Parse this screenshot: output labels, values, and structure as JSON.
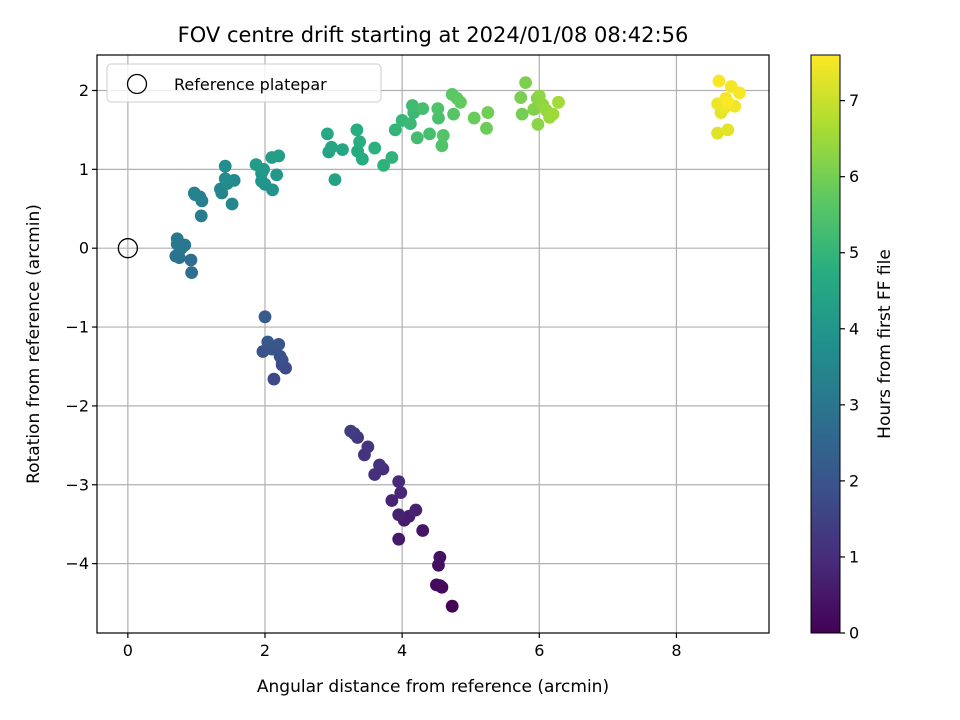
{
  "chart_data": {
    "type": "scatter",
    "title": "FOV centre drift starting at 2024/01/08 08:42:56",
    "xlabel": "Angular distance from reference (arcmin)",
    "ylabel": "Rotation from reference (arcmin)",
    "xlim": [
      -0.45,
      9.35
    ],
    "ylim": [
      -4.88,
      2.45
    ],
    "xticks": [
      0,
      2,
      4,
      6,
      8
    ],
    "xtick_labels": [
      "0",
      "2",
      "4",
      "6",
      "8"
    ],
    "yticks": [
      -4,
      -3,
      -2,
      -1,
      0,
      1,
      2
    ],
    "ytick_labels": [
      "−4",
      "−3",
      "−2",
      "−1",
      "0",
      "1",
      "2"
    ],
    "grid": true,
    "legend": {
      "placement": "upper-left",
      "entries": [
        {
          "label": "Reference platepar",
          "marker": "open-circle"
        }
      ]
    },
    "reference_point": {
      "x": 0,
      "y": 0
    },
    "colorbar": {
      "label": "Hours from first FF file",
      "colormap": "viridis",
      "range": [
        0,
        7.6
      ],
      "ticks": [
        0,
        1,
        2,
        3,
        4,
        5,
        6,
        7
      ],
      "tick_labels": [
        "0",
        "1",
        "2",
        "3",
        "4",
        "5",
        "6",
        "7"
      ]
    },
    "series": [
      {
        "points": [
          [
            4.73,
            -4.54,
            0.05
          ],
          [
            4.58,
            -4.3,
            0.15
          ],
          [
            4.5,
            -4.27,
            0.2
          ],
          [
            4.55,
            -4.28,
            0.25
          ],
          [
            4.53,
            -4.02,
            0.3
          ],
          [
            4.55,
            -3.92,
            0.35
          ],
          [
            4.3,
            -3.58,
            0.45
          ],
          [
            3.95,
            -3.69,
            0.55
          ],
          [
            4.03,
            -3.45,
            0.6
          ],
          [
            4.1,
            -3.4,
            0.65
          ],
          [
            4.2,
            -3.32,
            0.7
          ],
          [
            3.95,
            -3.38,
            0.75
          ],
          [
            3.85,
            -3.2,
            0.8
          ],
          [
            3.98,
            -3.1,
            0.85
          ],
          [
            3.95,
            -2.96,
            0.9
          ],
          [
            3.72,
            -2.8,
            1.0
          ],
          [
            3.6,
            -2.87,
            1.05
          ],
          [
            3.67,
            -2.75,
            1.1
          ],
          [
            3.45,
            -2.62,
            1.15
          ],
          [
            3.5,
            -2.52,
            1.2
          ],
          [
            3.35,
            -2.4,
            1.25
          ],
          [
            3.3,
            -2.35,
            1.3
          ],
          [
            3.25,
            -2.32,
            1.35
          ],
          [
            2.13,
            -1.66,
            1.7
          ],
          [
            2.3,
            -1.52,
            1.75
          ],
          [
            2.25,
            -1.48,
            1.8
          ],
          [
            2.25,
            -1.42,
            1.85
          ],
          [
            2.22,
            -1.37,
            1.9
          ],
          [
            1.97,
            -1.31,
            1.95
          ],
          [
            2.1,
            -1.28,
            2.0
          ],
          [
            2.2,
            -1.22,
            2.05
          ],
          [
            2.04,
            -1.19,
            2.1
          ],
          [
            2.0,
            -0.87,
            2.2
          ],
          [
            0.93,
            -0.31,
            2.75
          ],
          [
            0.92,
            -0.15,
            2.8
          ],
          [
            0.75,
            -0.12,
            2.85
          ],
          [
            0.7,
            -0.1,
            2.9
          ],
          [
            0.78,
            0.0,
            2.95
          ],
          [
            0.83,
            0.04,
            3.0
          ],
          [
            0.72,
            0.05,
            3.05
          ],
          [
            0.72,
            0.12,
            3.1
          ],
          [
            1.07,
            0.41,
            3.2
          ],
          [
            1.08,
            0.6,
            3.25
          ],
          [
            1.05,
            0.65,
            3.3
          ],
          [
            0.98,
            0.68,
            3.35
          ],
          [
            0.97,
            0.7,
            3.4
          ],
          [
            1.37,
            0.7,
            3.45
          ],
          [
            1.35,
            0.75,
            3.5
          ],
          [
            1.52,
            0.56,
            3.55
          ],
          [
            1.45,
            0.82,
            3.6
          ],
          [
            1.55,
            0.86,
            3.65
          ],
          [
            1.42,
            0.88,
            3.7
          ],
          [
            1.42,
            1.04,
            3.75
          ],
          [
            2.11,
            0.74,
            3.85
          ],
          [
            2.0,
            0.81,
            3.9
          ],
          [
            1.95,
            0.85,
            3.95
          ],
          [
            1.95,
            0.95,
            4.0
          ],
          [
            2.17,
            0.93,
            4.05
          ],
          [
            1.98,
            1.0,
            4.1
          ],
          [
            1.87,
            1.06,
            4.15
          ],
          [
            2.1,
            1.15,
            4.2
          ],
          [
            2.2,
            1.17,
            4.25
          ],
          [
            3.02,
            0.87,
            4.4
          ],
          [
            2.93,
            1.22,
            4.45
          ],
          [
            2.97,
            1.28,
            4.5
          ],
          [
            3.13,
            1.25,
            4.55
          ],
          [
            2.91,
            1.45,
            4.6
          ],
          [
            3.35,
            1.23,
            4.65
          ],
          [
            3.42,
            1.13,
            4.7
          ],
          [
            3.34,
            1.5,
            4.75
          ],
          [
            3.38,
            1.35,
            4.8
          ],
          [
            3.6,
            1.27,
            4.85
          ],
          [
            3.73,
            1.05,
            4.9
          ],
          [
            3.85,
            1.15,
            4.95
          ],
          [
            3.9,
            1.5,
            5.0
          ],
          [
            4.0,
            1.62,
            5.05
          ],
          [
            4.12,
            1.58,
            5.1
          ],
          [
            4.17,
            1.72,
            5.15
          ],
          [
            4.15,
            1.81,
            5.2
          ],
          [
            4.22,
            1.4,
            5.25
          ],
          [
            4.3,
            1.77,
            5.3
          ],
          [
            4.4,
            1.45,
            5.35
          ],
          [
            4.53,
            1.65,
            5.4
          ],
          [
            4.52,
            1.77,
            5.45
          ],
          [
            4.58,
            1.3,
            5.5
          ],
          [
            4.6,
            1.43,
            5.55
          ],
          [
            4.75,
            1.7,
            5.6
          ],
          [
            4.73,
            1.95,
            5.65
          ],
          [
            4.8,
            1.9,
            5.7
          ],
          [
            4.85,
            1.85,
            5.75
          ],
          [
            5.05,
            1.65,
            5.85
          ],
          [
            5.23,
            1.52,
            5.9
          ],
          [
            5.25,
            1.72,
            5.95
          ],
          [
            5.75,
            1.7,
            6.0
          ],
          [
            5.73,
            1.91,
            6.05
          ],
          [
            5.8,
            2.1,
            6.1
          ],
          [
            5.92,
            1.76,
            6.15
          ],
          [
            5.97,
            1.9,
            6.2
          ],
          [
            5.98,
            1.57,
            6.25
          ],
          [
            6.0,
            1.93,
            6.3
          ],
          [
            6.05,
            1.82,
            6.35
          ],
          [
            6.1,
            1.75,
            6.4
          ],
          [
            6.15,
            1.66,
            6.45
          ],
          [
            6.2,
            1.7,
            6.5
          ],
          [
            6.28,
            1.85,
            6.55
          ],
          [
            8.6,
            1.46,
            7.25
          ],
          [
            8.75,
            1.5,
            7.3
          ],
          [
            8.65,
            1.72,
            7.35
          ],
          [
            8.6,
            1.83,
            7.4
          ],
          [
            8.7,
            1.78,
            7.42
          ],
          [
            8.85,
            1.8,
            7.45
          ],
          [
            8.72,
            1.9,
            7.48
          ],
          [
            8.8,
            2.05,
            7.5
          ],
          [
            8.92,
            1.97,
            7.52
          ],
          [
            8.62,
            2.12,
            7.55
          ],
          [
            8.75,
            1.85,
            7.57
          ]
        ]
      }
    ]
  }
}
